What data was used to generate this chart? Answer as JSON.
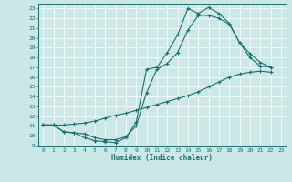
{
  "xlabel": "Humidex (Indice chaleur)",
  "xlim": [
    -0.5,
    23.5
  ],
  "ylim": [
    9,
    23.5
  ],
  "xticks": [
    0,
    1,
    2,
    3,
    4,
    5,
    6,
    7,
    8,
    9,
    10,
    11,
    12,
    13,
    14,
    15,
    16,
    17,
    18,
    19,
    20,
    21,
    22,
    23
  ],
  "yticks": [
    9,
    10,
    11,
    12,
    13,
    14,
    15,
    16,
    17,
    18,
    19,
    20,
    21,
    22,
    23
  ],
  "bg_color": "#cce8e6",
  "line_color": "#1a7070",
  "grid_color": "#ffffff",
  "curve1_x": [
    0,
    1,
    2,
    3,
    4,
    5,
    6,
    7,
    8,
    9,
    10,
    11,
    12,
    13,
    14,
    15,
    16,
    17,
    18,
    19,
    20,
    21,
    22
  ],
  "curve1_y": [
    11.1,
    11.1,
    10.4,
    10.3,
    9.8,
    9.5,
    9.4,
    9.3,
    9.8,
    11.4,
    16.8,
    17.0,
    18.5,
    20.3,
    23.0,
    22.5,
    23.1,
    22.5,
    21.5,
    19.5,
    18.4,
    17.5,
    17.0
  ],
  "curve2_x": [
    0,
    1,
    2,
    3,
    4,
    5,
    6,
    7,
    8,
    9,
    10,
    11,
    12,
    13,
    14,
    15,
    16,
    17,
    18,
    19,
    20,
    21,
    22
  ],
  "curve2_y": [
    11.1,
    11.1,
    10.4,
    10.3,
    10.2,
    9.8,
    9.6,
    9.6,
    9.9,
    11.0,
    14.4,
    16.8,
    17.4,
    18.5,
    20.8,
    22.3,
    22.3,
    22.0,
    21.4,
    19.5,
    18.0,
    17.1,
    17.0
  ],
  "curve3_x": [
    0,
    1,
    2,
    3,
    4,
    5,
    6,
    7,
    8,
    9,
    10,
    11,
    12,
    13,
    14,
    15,
    16,
    17,
    18,
    19,
    20,
    21,
    22
  ],
  "curve3_y": [
    11.1,
    11.1,
    11.1,
    11.2,
    11.3,
    11.5,
    11.8,
    12.1,
    12.3,
    12.6,
    12.9,
    13.2,
    13.5,
    13.8,
    14.1,
    14.5,
    15.0,
    15.5,
    16.0,
    16.3,
    16.5,
    16.6,
    16.5
  ]
}
